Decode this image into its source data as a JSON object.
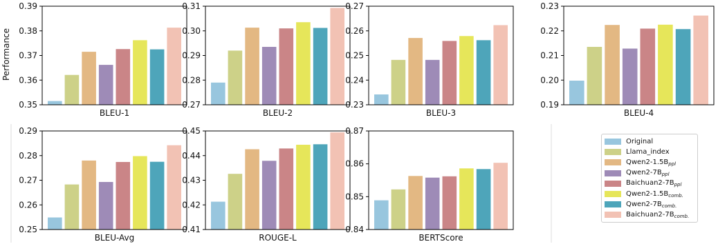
{
  "y_axis_label": "Performance",
  "series_colors": [
    "#98c6de",
    "#cdd188",
    "#e3b883",
    "#9e8bb7",
    "#ca8587",
    "#e6e65a",
    "#4ea5ba",
    "#f2c2b4"
  ],
  "legend": [
    {
      "name": "Original",
      "sub": ""
    },
    {
      "name": "Llama_index",
      "sub": ""
    },
    {
      "name": "Qwen2-1.5B",
      "sub": "ppl"
    },
    {
      "name": "Qwen2-7B",
      "sub": "ppl"
    },
    {
      "name": "Baichuan2-7B",
      "sub": "ppl"
    },
    {
      "name": "Qwen2-1.5B",
      "sub": "comb."
    },
    {
      "name": "Qwen2-7B",
      "sub": "comb."
    },
    {
      "name": "Baichuan2-7B",
      "sub": "comb."
    }
  ],
  "chart_data": [
    {
      "type": "bar",
      "xlabel": "BLEU-1",
      "ylim": [
        0.35,
        0.39
      ],
      "yticks": [
        "0.35",
        "0.36",
        "0.37",
        "0.38",
        "0.39"
      ],
      "values": [
        0.3515,
        0.3621,
        0.3715,
        0.3662,
        0.3726,
        0.3762,
        0.3725,
        0.3813
      ]
    },
    {
      "type": "bar",
      "xlabel": "BLEU-2",
      "ylim": [
        0.27,
        0.31
      ],
      "yticks": [
        "0.27",
        "0.28",
        "0.29",
        "0.30",
        "0.31"
      ],
      "values": [
        0.279,
        0.292,
        0.3013,
        0.2935,
        0.301,
        0.3035,
        0.3012,
        0.3093
      ]
    },
    {
      "type": "bar",
      "xlabel": "BLEU-3",
      "ylim": [
        0.23,
        0.27
      ],
      "yticks": [
        "0.23",
        "0.24",
        "0.25",
        "0.26",
        "0.27"
      ],
      "values": [
        0.2342,
        0.2482,
        0.2571,
        0.2482,
        0.2559,
        0.2579,
        0.2562,
        0.2623
      ]
    },
    {
      "type": "bar",
      "xlabel": "BLEU-4",
      "ylim": [
        0.19,
        0.23
      ],
      "yticks": [
        "0.19",
        "0.20",
        "0.21",
        "0.22",
        "0.23"
      ],
      "values": [
        0.1998,
        0.2135,
        0.2224,
        0.2128,
        0.2209,
        0.2225,
        0.2207,
        0.2262
      ]
    },
    {
      "type": "bar",
      "xlabel": "BLEU-Avg",
      "ylim": [
        0.25,
        0.29
      ],
      "yticks": [
        "0.25",
        "0.26",
        "0.27",
        "0.28",
        "0.29"
      ],
      "values": [
        0.2549,
        0.2683,
        0.278,
        0.2693,
        0.2774,
        0.2798,
        0.2775,
        0.2842
      ]
    },
    {
      "type": "bar",
      "xlabel": "ROUGE-L",
      "ylim": [
        0.41,
        0.45
      ],
      "yticks": [
        "0.41",
        "0.42",
        "0.43",
        "0.44",
        "0.45"
      ],
      "values": [
        0.4213,
        0.4326,
        0.4426,
        0.4379,
        0.4429,
        0.4444,
        0.4446,
        0.4494
      ]
    },
    {
      "type": "bar",
      "xlabel": "BERTScore",
      "ylim": [
        0.84,
        0.87
      ],
      "yticks": [
        "0.84",
        "0.85",
        "0.86",
        "0.87"
      ],
      "values": [
        0.8489,
        0.8522,
        0.8563,
        0.8558,
        0.8562,
        0.8586,
        0.8584,
        0.8603
      ]
    }
  ]
}
